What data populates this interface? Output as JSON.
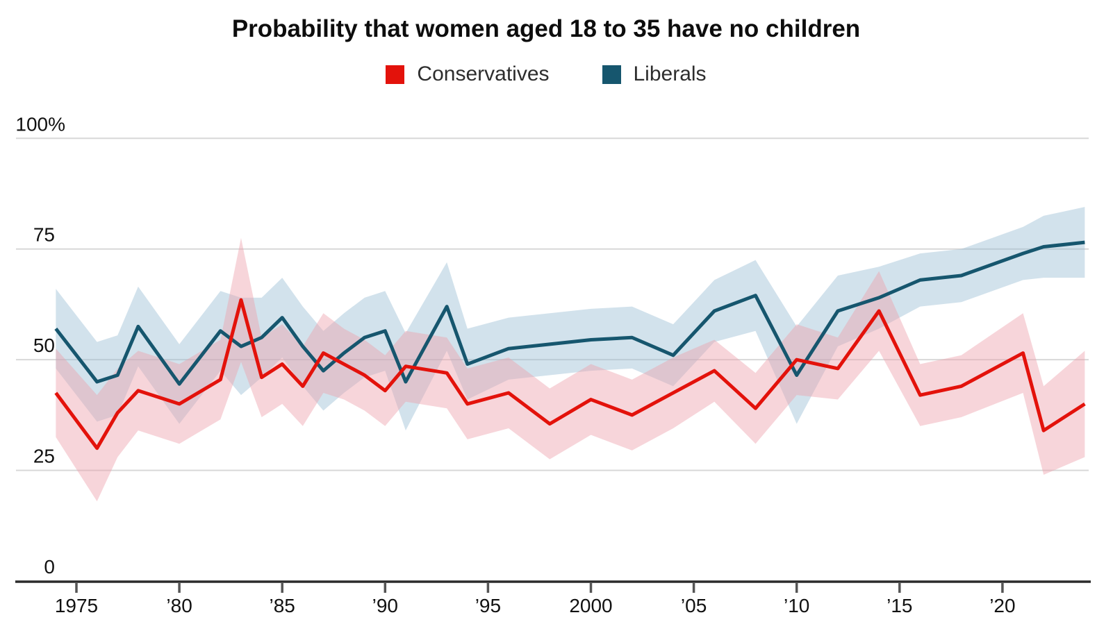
{
  "title": "Probability that women aged 18 to 35 have no children",
  "legend": [
    {
      "label": "Conservatives",
      "color": "#e3120b"
    },
    {
      "label": "Liberals",
      "color": "#16566e"
    }
  ],
  "colors": {
    "conservative_line": "#e3120b",
    "liberal_line": "#16566e",
    "conservative_band": "#eea2ad",
    "liberal_band": "#93bad1",
    "gridline": "#d8d8d8",
    "axis_line": "#2b2b2b",
    "tick_mark": "#555555",
    "label_text": "#111111"
  },
  "chart_data": {
    "type": "line",
    "title": "Probability that women aged 18 to 35 have no children",
    "xlabel": "",
    "ylabel": "",
    "ylim": [
      0,
      100
    ],
    "xlim": [
      1974,
      2024
    ],
    "grid": "horizontal",
    "legend_position": "top",
    "unit": "%",
    "x": [
      1974,
      1976,
      1977,
      1978,
      1980,
      1982,
      1983,
      1984,
      1985,
      1986,
      1987,
      1988,
      1989,
      1990,
      1991,
      1993,
      1994,
      1996,
      1998,
      2000,
      2002,
      2004,
      2006,
      2008,
      2010,
      2012,
      2014,
      2016,
      2018,
      2021,
      2022,
      2024
    ],
    "series": [
      {
        "name": "Liberals",
        "color": "#16566e",
        "band_color": "#93bad1",
        "band_opacity": 0.42,
        "values": [
          57,
          45,
          46.5,
          57.5,
          44.5,
          56.5,
          53,
          55,
          59.5,
          53,
          47.5,
          51.5,
          55,
          56.5,
          45,
          62,
          49,
          52.5,
          53.5,
          54.5,
          55,
          51,
          61,
          64.5,
          46.5,
          61,
          64,
          68,
          69,
          74,
          75.5,
          76.5
        ],
        "band_halfwidth": [
          9,
          9,
          9,
          9,
          9,
          9,
          11,
          9,
          9,
          9,
          9,
          9,
          9,
          9,
          11,
          10,
          8,
          7,
          7,
          7,
          7,
          7,
          7,
          8,
          11,
          8,
          7,
          6,
          6,
          6,
          7,
          8
        ]
      },
      {
        "name": "Conservatives",
        "color": "#e3120b",
        "band_color": "#eea2ad",
        "band_opacity": 0.45,
        "values": [
          42.5,
          30,
          38,
          43,
          40,
          45.5,
          63.5,
          46,
          49,
          44,
          51.5,
          49,
          46.5,
          43,
          48.5,
          47,
          40,
          42.5,
          35.5,
          41,
          37.5,
          42.5,
          47.5,
          39,
          50,
          48,
          61,
          42,
          44,
          51.5,
          34,
          40
        ],
        "band_halfwidth": [
          10,
          12,
          10,
          9,
          9,
          9,
          14,
          9,
          9,
          9,
          9,
          8,
          8,
          8,
          8,
          8,
          8,
          8,
          8,
          8,
          8,
          8,
          7,
          8,
          8,
          7,
          9,
          7,
          7,
          9,
          10,
          12
        ]
      }
    ],
    "yticks": [
      {
        "value": 0,
        "label": "0"
      },
      {
        "value": 25,
        "label": "25"
      },
      {
        "value": 50,
        "label": "50"
      },
      {
        "value": 75,
        "label": "75"
      },
      {
        "value": 100,
        "label": "100%"
      }
    ],
    "xticks": [
      {
        "value": 1975,
        "label": "1975"
      },
      {
        "value": 1980,
        "label": "’80"
      },
      {
        "value": 1985,
        "label": "’85"
      },
      {
        "value": 1990,
        "label": "’90"
      },
      {
        "value": 1995,
        "label": "’95"
      },
      {
        "value": 2000,
        "label": "2000"
      },
      {
        "value": 2005,
        "label": "’05"
      },
      {
        "value": 2010,
        "label": "’10"
      },
      {
        "value": 2015,
        "label": "’15"
      },
      {
        "value": 2020,
        "label": "’20"
      }
    ]
  }
}
